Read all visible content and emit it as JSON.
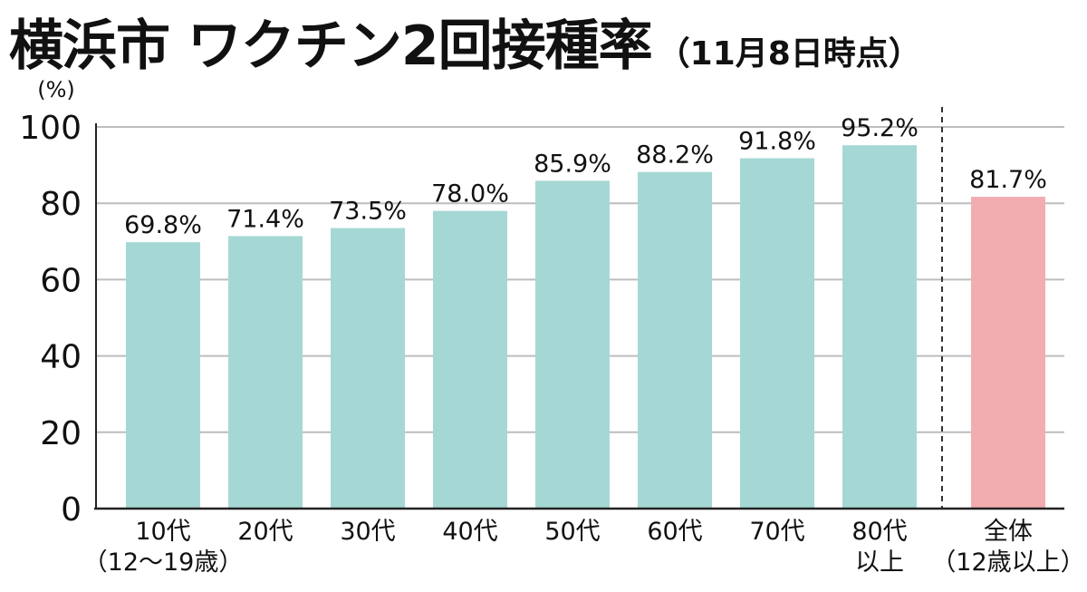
{
  "header": {
    "title": "横浜市 ワクチン2回接種率",
    "subtitle": "（11月8日時点）"
  },
  "chart_data": {
    "type": "bar",
    "title": "横浜市 ワクチン2回接種率（11月8日時点）",
    "ylabel": "(%)",
    "ylim": [
      0,
      100
    ],
    "yticks": [
      0,
      20,
      40,
      60,
      80,
      100
    ],
    "grid": true,
    "categories": [
      [
        "10代",
        "（12〜19歳）"
      ],
      [
        "20代"
      ],
      [
        "30代"
      ],
      [
        "40代"
      ],
      [
        "50代"
      ],
      [
        "60代"
      ],
      [
        "70代"
      ],
      [
        "80代",
        "以上"
      ],
      [
        "全体",
        "（12歳以上）"
      ]
    ],
    "values": [
      69.8,
      71.4,
      73.5,
      78.0,
      85.9,
      88.2,
      91.8,
      95.2,
      81.7
    ],
    "value_labels": [
      "69.8%",
      "71.4%",
      "73.5%",
      "78.0%",
      "85.9%",
      "88.2%",
      "91.8%",
      "95.2%",
      "81.7%"
    ],
    "colors": {
      "age_group": "#a5d8d4",
      "total": "#f2adb0",
      "grid": "#bdbdbd",
      "axis": "#222222"
    },
    "highlight_index": 8,
    "separator_before_index": 8
  }
}
